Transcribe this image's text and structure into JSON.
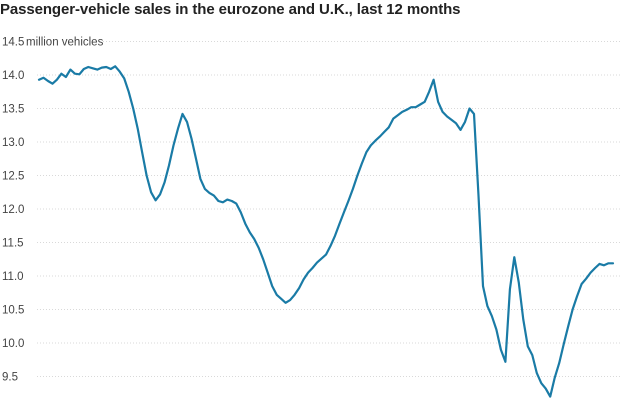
{
  "chart_data": {
    "type": "line",
    "title": "Passenger-vehicle sales in the eurozone and U.K., last 12 months",
    "ylabel": "",
    "unit_label": "million vehicles",
    "xlabel": "",
    "ylim": [
      9.3,
      14.65
    ],
    "yticks": [
      9.5,
      10.0,
      10.5,
      11.0,
      11.5,
      12.0,
      12.5,
      13.0,
      13.5,
      14.0,
      14.5
    ],
    "ytick_labels": [
      "9.5",
      "10.0",
      "10.5",
      "11.0",
      "11.5",
      "12.0",
      "12.5",
      "13.0",
      "13.5",
      "14.0",
      "14.5"
    ],
    "grid": true,
    "series_color": "#1a7ba6",
    "series": [
      {
        "values": [
          13.93,
          13.96,
          13.91,
          13.87,
          13.93,
          14.02,
          13.97,
          14.08,
          14.02,
          14.01,
          14.09,
          14.12,
          14.1,
          14.08,
          14.11,
          14.12,
          14.09,
          14.13,
          14.05,
          13.95,
          13.75,
          13.5,
          13.2,
          12.85,
          12.5,
          12.25,
          12.13,
          12.22,
          12.4,
          12.65,
          12.95,
          13.2,
          13.42,
          13.3,
          13.05,
          12.75,
          12.45,
          12.3,
          12.24,
          12.2,
          12.12,
          12.1,
          12.14,
          12.12,
          12.08,
          11.95,
          11.78,
          11.65,
          11.55,
          11.42,
          11.25,
          11.05,
          10.85,
          10.72,
          10.66,
          10.6,
          10.64,
          10.72,
          10.82,
          10.95,
          11.05,
          11.12,
          11.2,
          11.26,
          11.32,
          11.45,
          11.6,
          11.78,
          11.95,
          12.12,
          12.3,
          12.5,
          12.68,
          12.85,
          12.95,
          13.02,
          13.08,
          13.15,
          13.22,
          13.35,
          13.4,
          13.45,
          13.48,
          13.52,
          13.52,
          13.56,
          13.6,
          13.75,
          13.93,
          13.6,
          13.45,
          13.38,
          13.33,
          13.28,
          13.18,
          13.3,
          13.5,
          13.42,
          12.2,
          10.85,
          10.55,
          10.4,
          10.2,
          9.9,
          9.72,
          10.8,
          11.28,
          10.9,
          10.35,
          9.95,
          9.82,
          9.55,
          9.4,
          9.32,
          9.2,
          9.48,
          9.7,
          9.98,
          10.25,
          10.5,
          10.7,
          10.88,
          10.96,
          11.05,
          11.12,
          11.18,
          11.16,
          11.19,
          11.19
        ]
      }
    ]
  }
}
